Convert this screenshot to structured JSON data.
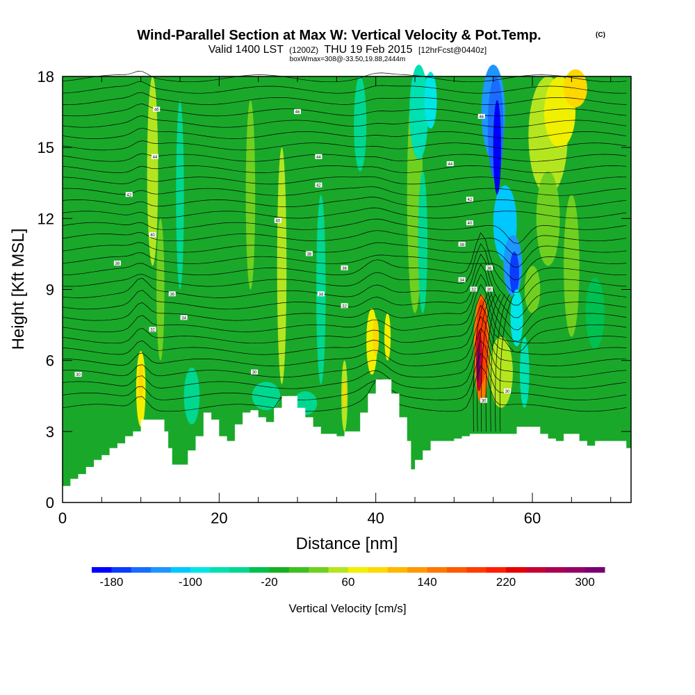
{
  "chart_data": {
    "type": "heatmap",
    "title_main": "Wind-Parallel Section at Max W: Vertical Velocity & Pot.Temp.",
    "title_mark": "(C)",
    "subtitle_valid": "Valid 1400 LST",
    "subtitle_z": "(1200Z)",
    "subtitle_date": "THU 19 Feb 2015",
    "subtitle_fcst": "[12hrFcst@0440z]",
    "subtitle_box": "boxWmax=308@-33.50,19.88,2444m",
    "xlabel": "Distance [nm]",
    "ylabel": "Height [Kft MSL]",
    "xlim": [
      0,
      72.6
    ],
    "ylim": [
      0,
      18
    ],
    "xticks": [
      "0",
      "20",
      "40",
      "60"
    ],
    "yticks": [
      "0",
      "3",
      "6",
      "9",
      "12",
      "15",
      "18"
    ],
    "colorbar": {
      "label": "Vertical Velocity [cm/s]",
      "ticks": [
        "-180",
        "-100",
        "-20",
        "60",
        "140",
        "220",
        "300"
      ],
      "levels": [
        -200,
        -180,
        -160,
        -140,
        -120,
        -100,
        -80,
        -60,
        -40,
        -20,
        0,
        20,
        40,
        60,
        80,
        100,
        120,
        140,
        160,
        180,
        200,
        220,
        240,
        260,
        280,
        300,
        320
      ],
      "colors": [
        "#0000ff",
        "#0a3cff",
        "#1a6cff",
        "#1e96ff",
        "#00c8ff",
        "#00e6e6",
        "#00e0b0",
        "#00d890",
        "#00c050",
        "#16b020",
        "#40c020",
        "#70d020",
        "#b4e620",
        "#f0f000",
        "#ffd800",
        "#ffb800",
        "#ff9800",
        "#ff7800",
        "#ff5a00",
        "#ff3c00",
        "#ff1e00",
        "#e60000",
        "#c80032",
        "#aa0050",
        "#960064",
        "#780070"
      ]
    },
    "contour_field": "Potential temperature",
    "contour_labels": [
      "46",
      "46",
      "46",
      "44",
      "44",
      "44",
      "42",
      "42",
      "42",
      "40",
      "40",
      "40",
      "38",
      "38",
      "38",
      "36",
      "36",
      "36",
      "34",
      "34",
      "34",
      "32",
      "32",
      "32",
      "30",
      "30",
      "30",
      "30",
      "30"
    ],
    "features": [
      {
        "name": "max updraft",
        "x": 54,
        "height_kft": 6,
        "w": 300
      },
      {
        "name": "strong downdraft",
        "x": 55.5,
        "height_kft": 15,
        "w": -180
      },
      {
        "name": "downdraft",
        "x": 57.5,
        "height_kft": 9.8,
        "w": -180
      },
      {
        "name": "updraft",
        "x": 40,
        "height_kft": 7,
        "w": 80
      },
      {
        "name": "updraft",
        "x": 10,
        "height_kft": 5,
        "w": 70
      }
    ],
    "terrain": [
      [
        0,
        0.7
      ],
      [
        1,
        1
      ],
      [
        2,
        1.2
      ],
      [
        3,
        1.5
      ],
      [
        4,
        1.8
      ],
      [
        5,
        2
      ],
      [
        6,
        2.3
      ],
      [
        7,
        2.5
      ],
      [
        8,
        2.8
      ],
      [
        9,
        3
      ],
      [
        10,
        3.5
      ],
      [
        11,
        3.5
      ],
      [
        12,
        3.5
      ],
      [
        13,
        3
      ],
      [
        13.5,
        2.3
      ],
      [
        14,
        1.6
      ],
      [
        15,
        1.6
      ],
      [
        16,
        2.2
      ],
      [
        17,
        2.8
      ],
      [
        18,
        3.8
      ],
      [
        19,
        3.5
      ],
      [
        20,
        2.8
      ],
      [
        21,
        2.6
      ],
      [
        22,
        3.3
      ],
      [
        23,
        3.8
      ],
      [
        24,
        3.9
      ],
      [
        25,
        3.6
      ],
      [
        26,
        3.4
      ],
      [
        27,
        4
      ],
      [
        28,
        4.5
      ],
      [
        29,
        4.5
      ],
      [
        30,
        4
      ],
      [
        31,
        3.6
      ],
      [
        32,
        3.2
      ],
      [
        33,
        2.9
      ],
      [
        34,
        2.9
      ],
      [
        35,
        2.8
      ],
      [
        36,
        3
      ],
      [
        37,
        3
      ],
      [
        38,
        3.8
      ],
      [
        39,
        4.6
      ],
      [
        40,
        5.2
      ],
      [
        41,
        5.2
      ],
      [
        42,
        4.6
      ],
      [
        43,
        3.6
      ],
      [
        44,
        2.6
      ],
      [
        44.5,
        1.4
      ],
      [
        45,
        1.8
      ],
      [
        46,
        2.2
      ],
      [
        47,
        2.6
      ],
      [
        48,
        2.6
      ],
      [
        49,
        2.6
      ],
      [
        50,
        2.7
      ],
      [
        51,
        2.8
      ],
      [
        52,
        2.9
      ],
      [
        53,
        2.9
      ],
      [
        54,
        2.9
      ],
      [
        55,
        2.9
      ],
      [
        56,
        2.9
      ],
      [
        57,
        2.9
      ],
      [
        58,
        3.2
      ],
      [
        59,
        3.2
      ],
      [
        60,
        3.2
      ],
      [
        61,
        2.9
      ],
      [
        62,
        2.7
      ],
      [
        63,
        2.6
      ],
      [
        64,
        2.9
      ],
      [
        65,
        2.9
      ],
      [
        66,
        2.6
      ],
      [
        67,
        2.4
      ],
      [
        68,
        2.6
      ],
      [
        69,
        2.6
      ],
      [
        70,
        2.6
      ],
      [
        71,
        2.6
      ],
      [
        72,
        2.3
      ],
      [
        72.6,
        2.3
      ]
    ]
  }
}
